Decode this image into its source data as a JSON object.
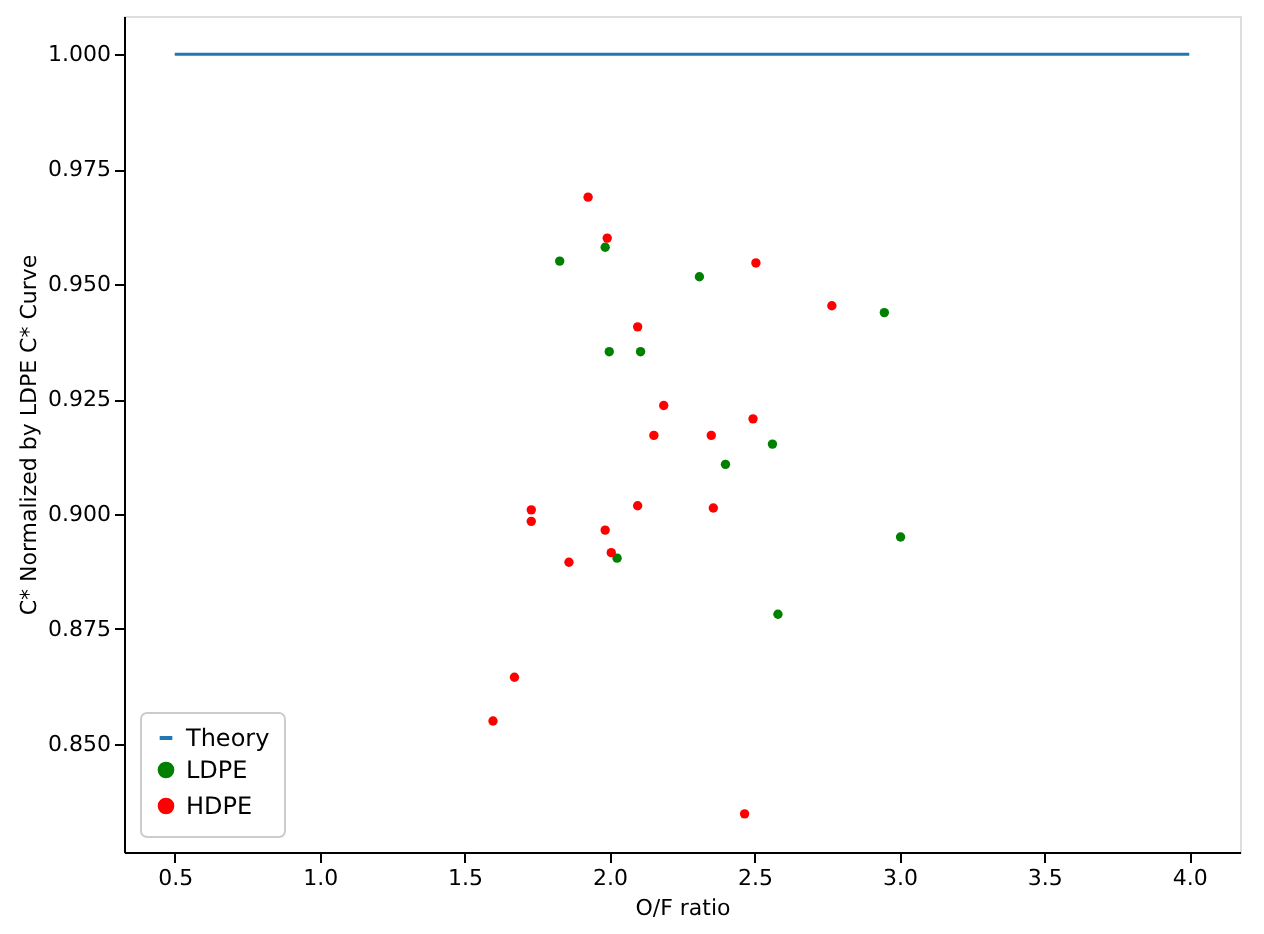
{
  "chart_data": {
    "type": "scatter",
    "xlabel": "O/F ratio",
    "ylabel": "C* Normalized by LDPE C* Curve",
    "xlim": [
      0.325,
      4.175
    ],
    "xticks": [
      0.5,
      {
        "value": 1,
        "label": "1.0"
      },
      1.5,
      {
        "value": 2,
        "label": "2.0"
      },
      2.5,
      {
        "value": 3,
        "label": "3.0"
      },
      3.5,
      {
        "value": 4,
        "label": "4.0"
      }
    ],
    "ylim": [
      0.8265,
      1.0083
    ],
    "yticks": [
      {
        "value": 0.85,
        "label": "0.850"
      },
      0.875,
      {
        "value": 0.9,
        "label": "0.900"
      },
      0.925,
      {
        "value": 0.95,
        "label": "0.950"
      },
      0.975,
      {
        "value": 1,
        "label": "1.000"
      }
    ],
    "grid": false,
    "legend": "bottom left",
    "series": [
      {
        "name": "Theory",
        "type": "line",
        "marker": "none",
        "color": "#1f77b4",
        "x": [
          0.5,
          4.0
        ],
        "values": [
          1.0,
          1.0
        ]
      },
      {
        "name": "LDPE",
        "marker": "circle",
        "color": "#008000",
        "x": [
          1.985,
          1.828,
          2.31,
          1.999,
          2.107,
          2.562,
          2.4,
          2.026,
          2.948,
          3.004,
          2.581
        ],
        "values": [
          0.958,
          0.955,
          0.9516,
          0.9353,
          0.9353,
          0.9152,
          0.9108,
          0.8904,
          0.9438,
          0.895,
          0.8782
        ]
      },
      {
        "name": "HDPE",
        "marker": "circle",
        "color": "#ff0000",
        "x": [
          1.926,
          1.992,
          2.505,
          2.097,
          2.187,
          2.495,
          2.153,
          2.351,
          1.73,
          1.73,
          2.097,
          2.358,
          1.985,
          1.86,
          2.006,
          2.767,
          1.672,
          1.598,
          2.466
        ],
        "values": [
          0.9689,
          0.96,
          0.9546,
          0.9407,
          0.9236,
          0.9207,
          0.9171,
          0.9171,
          0.9009,
          0.8984,
          0.9018,
          0.9013,
          0.8965,
          0.8895,
          0.8916,
          0.9453,
          0.8645,
          0.855,
          0.8348
        ]
      }
    ]
  }
}
